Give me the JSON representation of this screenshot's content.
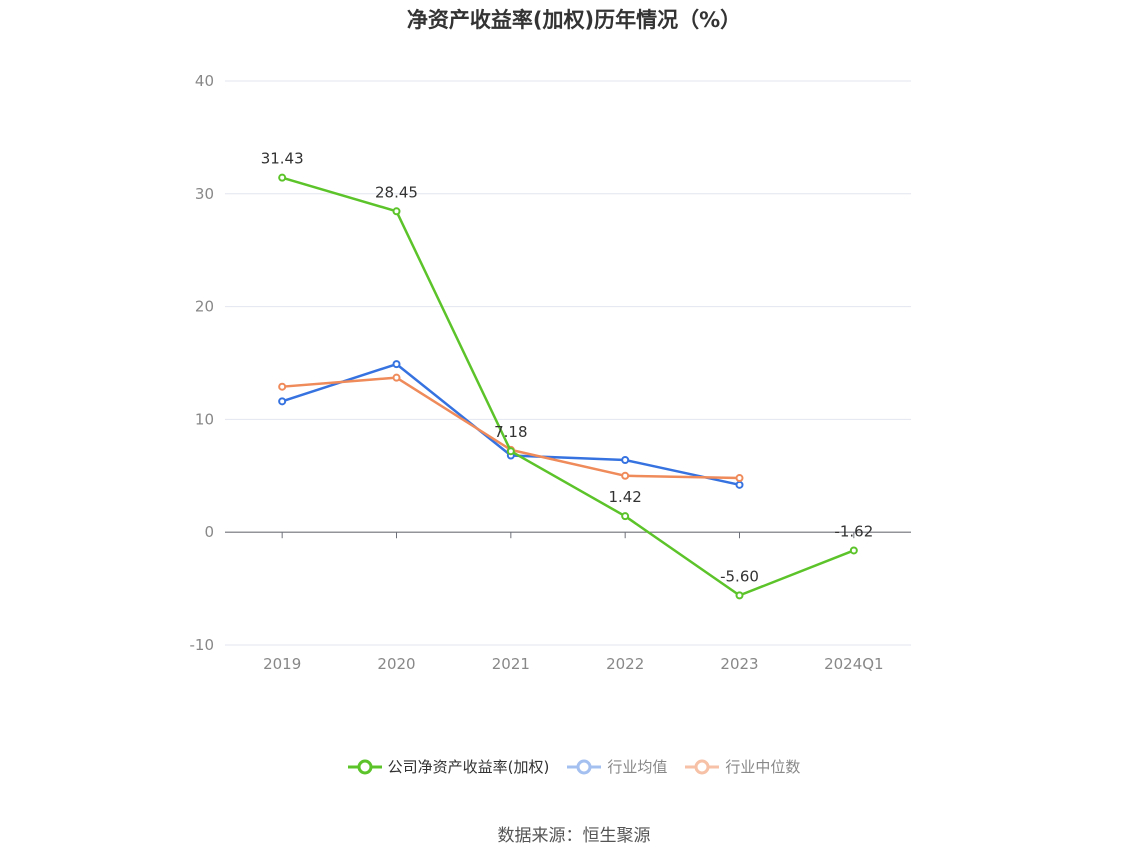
{
  "chart_data": {
    "type": "line",
    "title": "净资产收益率(加权)历年情况（%）",
    "categories": [
      "2019",
      "2020",
      "2021",
      "2022",
      "2023",
      "2024Q1"
    ],
    "yticks": [
      "40",
      "30",
      "20",
      "10",
      "0",
      "-10"
    ],
    "ylim": [
      -10,
      40
    ],
    "grid": true,
    "legend_position": "bottom",
    "series": [
      {
        "name": "公司净资产收益率(加权)",
        "color": "#5cc42a",
        "values": [
          31.43,
          28.45,
          7.18,
          1.42,
          -5.6,
          -1.62
        ],
        "labels": [
          "31.43",
          "28.45",
          "7.18",
          "1.42",
          "-5.60",
          "-1.62"
        ]
      },
      {
        "name": "行业均值",
        "color": "#3673e0",
        "values": [
          11.6,
          14.9,
          6.8,
          6.4,
          4.2,
          null
        ]
      },
      {
        "name": "行业中位数",
        "color": "#ef8a5a",
        "values": [
          12.9,
          13.7,
          7.3,
          5.0,
          4.8,
          null
        ]
      }
    ]
  },
  "legend_colors": {
    "series0_light": "#5cc42a",
    "series1_light": "#a4c0f0",
    "series2_light": "#f6c1a6"
  },
  "source": "数据来源：恒生聚源"
}
